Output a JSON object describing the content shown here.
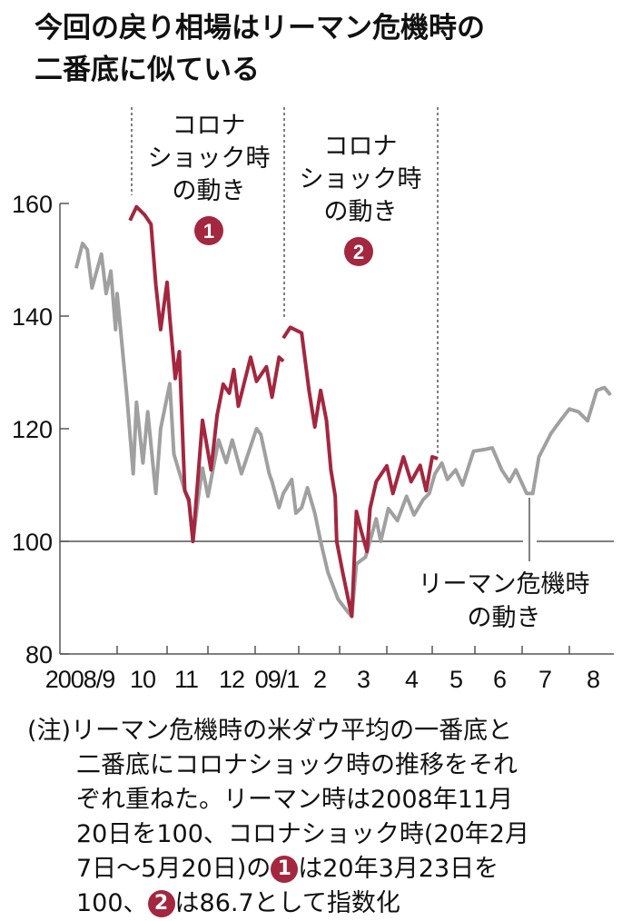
{
  "title": {
    "line1": "今回の戻り相場はリーマン危機時の",
    "line2": "二番底に似ている"
  },
  "colors": {
    "corona": "#a3273f",
    "lehman": "#a0a0a0",
    "axis": "#555555"
  },
  "annotations": {
    "corona1": {
      "lines": [
        "コロナ",
        "ショック時",
        "の動き"
      ],
      "badge": "1"
    },
    "corona2": {
      "lines": [
        "コロナ",
        "ショック時",
        "の動き"
      ],
      "badge": "2"
    },
    "lehman": {
      "lines": [
        "リーマン危機時",
        "の動き"
      ]
    }
  },
  "note": {
    "line1": "(注)リーマン危機時の米ダウ平均の一番底と",
    "line2": "二番底にコロナショック時の推移をそれ",
    "line3": "ぞれ重ねた。リーマン時は2008年11月",
    "line4": "20日を100、コロナショック時(20年2月",
    "line5a": "7日～5月20日)の",
    "line5b": "は20年3月23日を",
    "line6a": "100、",
    "line6b": "は86.7として指数化",
    "badge1": "1",
    "badge2": "2"
  },
  "chart_data": {
    "type": "line",
    "title": "今回の戻り相場はリーマン危機時の二番底に似ている",
    "xlabel": "",
    "ylabel": "",
    "ylim": [
      80,
      160
    ],
    "yticks": [
      "160",
      "140",
      "120",
      "100",
      "80"
    ],
    "ytick_values": [
      160,
      140,
      120,
      100,
      80
    ],
    "xticks": [
      "2008/9",
      "10",
      "11",
      "12",
      "09/1",
      "2",
      "3",
      "4",
      "5",
      "6",
      "7",
      "8"
    ],
    "xrange": [
      "2008-09-01",
      "2009-08-31"
    ],
    "reference_line": 100,
    "grid": false,
    "series": [
      {
        "name": "リーマン危機時の動き",
        "color": "#a0a0a0",
        "points": [
          [
            "2008-09-05",
            148.5
          ],
          [
            "2008-09-09",
            152.9
          ],
          [
            "2008-09-12",
            151.8
          ],
          [
            "2008-09-15",
            145
          ],
          [
            "2008-09-21",
            151
          ],
          [
            "2008-09-24",
            144
          ],
          [
            "2008-09-27",
            148
          ],
          [
            "2008-09-30",
            137.6
          ],
          [
            "2008-10-01",
            144
          ],
          [
            "2008-10-07",
            126
          ],
          [
            "2008-10-11",
            112
          ],
          [
            "2008-10-13",
            124.7
          ],
          [
            "2008-10-17",
            113.9
          ],
          [
            "2008-10-20",
            123
          ],
          [
            "2008-10-25",
            108.5
          ],
          [
            "2008-10-28",
            120
          ],
          [
            "2008-11-03",
            128
          ],
          [
            "2008-11-06",
            115.5
          ],
          [
            "2008-11-14",
            109
          ],
          [
            "2008-11-17",
            107
          ],
          [
            "2008-11-20",
            100
          ],
          [
            "2008-11-24",
            108
          ],
          [
            "2008-11-27",
            113
          ],
          [
            "2008-12-01",
            108
          ],
          [
            "2008-12-08",
            118
          ],
          [
            "2008-12-13",
            114
          ],
          [
            "2008-12-17",
            118
          ],
          [
            "2008-12-23",
            112
          ],
          [
            "2009-01-02",
            120
          ],
          [
            "2009-01-05",
            119
          ],
          [
            "2009-01-11",
            112
          ],
          [
            "2009-01-13",
            110.6
          ],
          [
            "2009-01-18",
            106
          ],
          [
            "2009-01-21",
            108.5
          ],
          [
            "2009-01-27",
            111
          ],
          [
            "2009-01-30",
            105
          ],
          [
            "2009-02-03",
            106
          ],
          [
            "2009-02-07",
            109.5
          ],
          [
            "2009-02-12",
            105
          ],
          [
            "2009-02-16",
            100
          ],
          [
            "2009-02-21",
            94.5
          ],
          [
            "2009-02-28",
            89.7
          ],
          [
            "2009-03-06",
            87.6
          ],
          [
            "2009-03-09",
            86.7
          ],
          [
            "2009-03-12",
            96
          ],
          [
            "2009-03-18",
            97.2
          ],
          [
            "2009-03-25",
            104
          ],
          [
            "2009-03-28",
            100
          ],
          [
            "2009-04-02",
            105.8
          ],
          [
            "2009-04-08",
            103.7
          ],
          [
            "2009-04-14",
            108
          ],
          [
            "2009-04-19",
            104.7
          ],
          [
            "2009-04-25",
            107.4
          ],
          [
            "2009-04-29",
            108.5
          ],
          [
            "2009-05-03",
            112
          ],
          [
            "2009-05-08",
            113.9
          ],
          [
            "2009-05-12",
            111
          ],
          [
            "2009-05-18",
            112.7
          ],
          [
            "2009-05-23",
            110
          ],
          [
            "2009-05-31",
            116
          ],
          [
            "2009-06-07",
            116.3
          ],
          [
            "2009-06-12",
            116.6
          ],
          [
            "2009-06-18",
            112.7
          ],
          [
            "2009-06-23",
            110.6
          ],
          [
            "2009-06-27",
            112.7
          ],
          [
            "2009-07-04",
            108.5
          ],
          [
            "2009-07-08",
            108.5
          ],
          [
            "2009-07-12",
            115
          ],
          [
            "2009-07-20",
            119.2
          ],
          [
            "2009-07-26",
            121.4
          ],
          [
            "2009-08-01",
            123.5
          ],
          [
            "2009-08-07",
            123
          ],
          [
            "2009-08-13",
            121.4
          ],
          [
            "2009-08-19",
            126.8
          ],
          [
            "2009-08-24",
            127.3
          ],
          [
            "2009-08-28",
            126
          ]
        ]
      },
      {
        "name": "コロナショック時の動き 1",
        "color": "#a3273f",
        "points": [
          [
            "2008-10-09",
            157
          ],
          [
            "2008-10-13",
            159.4
          ],
          [
            "2008-10-18",
            158
          ],
          [
            "2008-10-22",
            156.3
          ],
          [
            "2008-10-25",
            145.6
          ],
          [
            "2008-10-28",
            137.6
          ],
          [
            "2008-11-01",
            146
          ],
          [
            "2008-11-03",
            139.7
          ],
          [
            "2008-11-07",
            128.9
          ],
          [
            "2008-11-10",
            133.7
          ],
          [
            "2008-11-14",
            109
          ],
          [
            "2008-11-17",
            107.4
          ],
          [
            "2008-11-20",
            100
          ],
          [
            "2008-11-27",
            121.5
          ],
          [
            "2008-12-03",
            112.7
          ],
          [
            "2008-12-07",
            122.4
          ],
          [
            "2008-12-11",
            127.9
          ],
          [
            "2008-12-15",
            126.3
          ],
          [
            "2008-12-18",
            130.5
          ],
          [
            "2008-12-21",
            124
          ],
          [
            "2008-12-29",
            132.7
          ],
          [
            "2009-01-02",
            128.4
          ],
          [
            "2009-01-09",
            131
          ],
          [
            "2009-01-13",
            125.6
          ],
          [
            "2009-01-18",
            132.7
          ],
          [
            "2009-01-21",
            132
          ]
        ]
      },
      {
        "name": "コロナショック時の動き 2",
        "color": "#a3273f",
        "points": [
          [
            "2009-01-21",
            136.1
          ],
          [
            "2009-01-26",
            138
          ],
          [
            "2009-02-03",
            137
          ],
          [
            "2009-02-08",
            126.8
          ],
          [
            "2009-02-12",
            120.3
          ],
          [
            "2009-02-16",
            126.8
          ],
          [
            "2009-02-20",
            121.5
          ],
          [
            "2009-02-23",
            112.7
          ],
          [
            "2009-02-26",
            108
          ],
          [
            "2009-02-27",
            100
          ],
          [
            "2009-03-03",
            94.5
          ],
          [
            "2009-03-09",
            86.7
          ],
          [
            "2009-03-12",
            105.3
          ],
          [
            "2009-03-15",
            102
          ],
          [
            "2009-03-19",
            98.2
          ],
          [
            "2009-03-21",
            105.8
          ],
          [
            "2009-03-25",
            110.6
          ],
          [
            "2009-04-01",
            113.4
          ],
          [
            "2009-04-05",
            108.5
          ],
          [
            "2009-04-12",
            115
          ],
          [
            "2009-04-17",
            110.6
          ],
          [
            "2009-04-23",
            113.5
          ],
          [
            "2009-04-27",
            109
          ],
          [
            "2009-05-01",
            115
          ],
          [
            "2009-05-05",
            114.7
          ]
        ]
      }
    ]
  }
}
